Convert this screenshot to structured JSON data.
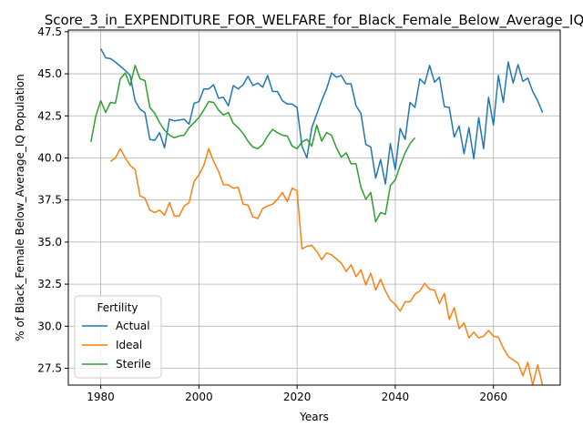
{
  "chart_data": {
    "type": "line",
    "title": "Score_3_in_EXPENDITURE_FOR_WELFARE_for_Black_Female_Below_Average_IQ",
    "xlabel": "Years",
    "ylabel": "% of Black_Female Below_Average_IQ Population",
    "xlim": [
      1973.4,
      2073.6
    ],
    "ylim": [
      26.5,
      47.6
    ],
    "xticks": [
      1980,
      2000,
      2020,
      2040,
      2060
    ],
    "xtick_labels": [
      "1980",
      "2000",
      "2020",
      "2040",
      "2060"
    ],
    "yticks": [
      27.5,
      30.0,
      32.5,
      35.0,
      37.5,
      40.0,
      42.5,
      45.0,
      47.5
    ],
    "ytick_labels": [
      "27.5",
      "30.0",
      "32.5",
      "35.0",
      "37.5",
      "40.0",
      "42.5",
      "45.0",
      "47.5"
    ],
    "grid": true,
    "legend": {
      "title": "Fertility",
      "position": "lower left"
    },
    "series": [
      {
        "name": "Actual",
        "color": "#1f77b4",
        "x": [
          1980,
          1981,
          1982,
          1983,
          1984,
          1985,
          1986,
          1987,
          1988,
          1989,
          1990,
          1991,
          1992,
          1993,
          1994,
          1995,
          1996,
          1997,
          1998,
          1999,
          2000,
          2001,
          2002,
          2003,
          2004,
          2005,
          2006,
          2007,
          2008,
          2009,
          2010,
          2011,
          2012,
          2013,
          2014,
          2015,
          2016,
          2017,
          2018,
          2019,
          2020,
          2021,
          2022,
          2023,
          2024,
          2025,
          2026,
          2027,
          2028,
          2029,
          2030,
          2031,
          2032,
          2033,
          2034,
          2035,
          2036,
          2037,
          2038,
          2039,
          2040,
          2041,
          2042,
          2043,
          2044,
          2045,
          2046,
          2047,
          2048,
          2049,
          2050,
          2051,
          2052,
          2053,
          2054,
          2055,
          2056,
          2057,
          2058,
          2059,
          2060,
          2061,
          2062,
          2063,
          2064,
          2065,
          2066,
          2067,
          2068,
          2069,
          2070
        ],
        "values": [
          46.5,
          45.95,
          45.9,
          45.7,
          45.45,
          45.2,
          44.9,
          43.4,
          42.9,
          42.7,
          41.1,
          41.05,
          41.5,
          40.6,
          42.3,
          42.2,
          42.25,
          42.3,
          42.0,
          43.25,
          43.35,
          44.1,
          44.1,
          44.35,
          43.55,
          43.6,
          43.1,
          44.3,
          44.1,
          44.35,
          44.85,
          44.3,
          44.45,
          44.2,
          44.9,
          43.95,
          43.95,
          43.4,
          43.2,
          43.2,
          43.0,
          40.7,
          40.0,
          41.8,
          42.6,
          43.4,
          44.1,
          45.05,
          44.8,
          44.9,
          44.4,
          44.4,
          43.1,
          42.65,
          40.8,
          40.65,
          38.8,
          39.9,
          38.45,
          40.85,
          39.3,
          41.75,
          41.1,
          43.3,
          43.0,
          44.7,
          44.4,
          45.5,
          44.5,
          44.8,
          43.05,
          43.0,
          41.25,
          41.9,
          40.25,
          41.8,
          39.95,
          42.4,
          40.55,
          43.6,
          41.95,
          44.9,
          43.3,
          45.7,
          44.45,
          45.55,
          44.55,
          44.75,
          43.95,
          43.4,
          42.7
        ]
      },
      {
        "name": "Ideal",
        "color": "#ff7f0e",
        "x": [
          1982,
          1983,
          1984,
          1985,
          1986,
          1987,
          1988,
          1989,
          1990,
          1991,
          1992,
          1993,
          1994,
          1995,
          1996,
          1997,
          1998,
          1999,
          2000,
          2001,
          2002,
          2003,
          2004,
          2005,
          2006,
          2007,
          2008,
          2009,
          2010,
          2011,
          2012,
          2013,
          2014,
          2015,
          2016,
          2017,
          2018,
          2019,
          2020,
          2021,
          2022,
          2023,
          2024,
          2025,
          2026,
          2027,
          2028,
          2029,
          2030,
          2031,
          2032,
          2033,
          2034,
          2035,
          2036,
          2037,
          2038,
          2039,
          2040,
          2041,
          2042,
          2043,
          2044,
          2045,
          2046,
          2047,
          2048,
          2049,
          2050,
          2051,
          2052,
          2053,
          2054,
          2055,
          2056,
          2057,
          2058,
          2059,
          2060,
          2061,
          2062,
          2063,
          2064,
          2065,
          2066,
          2067,
          2068,
          2069,
          2070
        ],
        "values": [
          39.8,
          40.0,
          40.55,
          40.0,
          39.55,
          39.3,
          37.75,
          37.6,
          36.9,
          36.75,
          36.9,
          36.6,
          37.35,
          36.55,
          36.55,
          37.15,
          37.35,
          38.6,
          39.0,
          39.55,
          40.55,
          39.8,
          39.2,
          38.4,
          38.4,
          38.2,
          38.25,
          37.25,
          37.2,
          36.5,
          36.4,
          37.0,
          37.15,
          37.25,
          37.55,
          37.95,
          37.4,
          38.2,
          38.05,
          34.6,
          34.75,
          34.8,
          34.45,
          33.95,
          34.35,
          34.25,
          34.0,
          33.75,
          33.25,
          33.65,
          32.95,
          33.35,
          32.45,
          33.15,
          32.15,
          32.8,
          32.1,
          31.55,
          31.3,
          30.9,
          31.45,
          31.45,
          31.9,
          32.1,
          32.55,
          32.2,
          32.15,
          31.35,
          31.95,
          30.4,
          31.1,
          29.85,
          30.2,
          29.3,
          29.65,
          29.3,
          29.4,
          29.75,
          29.4,
          29.35,
          28.7,
          28.2,
          28.0,
          27.8,
          27.05,
          27.85,
          26.5,
          27.7,
          26.5
        ]
      },
      {
        "name": "Sterile",
        "color": "#2ca02c",
        "x": [
          1978,
          1979,
          1980,
          1981,
          1982,
          1983,
          1984,
          1985,
          1986,
          1987,
          1988,
          1989,
          1990,
          1991,
          1992,
          1993,
          1994,
          1995,
          1996,
          1997,
          1998,
          1999,
          2000,
          2001,
          2002,
          2003,
          2004,
          2005,
          2006,
          2007,
          2008,
          2009,
          2010,
          2011,
          2012,
          2013,
          2014,
          2015,
          2016,
          2017,
          2018,
          2019,
          2020,
          2021,
          2022,
          2023,
          2024,
          2025,
          2026,
          2027,
          2028,
          2029,
          2030,
          2031,
          2032,
          2033,
          2034,
          2035,
          2036,
          2037,
          2038,
          2039,
          2040,
          2041,
          2042,
          2043,
          2044
        ],
        "values": [
          40.95,
          42.5,
          43.4,
          42.7,
          43.3,
          43.25,
          44.7,
          45.05,
          44.3,
          45.5,
          44.7,
          44.6,
          43.0,
          42.65,
          42.1,
          41.65,
          41.35,
          41.2,
          41.3,
          41.35,
          41.8,
          42.1,
          42.4,
          42.85,
          43.35,
          43.3,
          42.85,
          42.55,
          42.7,
          42.05,
          41.8,
          41.45,
          41.0,
          40.65,
          40.55,
          40.8,
          41.3,
          41.7,
          41.5,
          41.35,
          41.3,
          40.7,
          40.55,
          40.95,
          41.1,
          40.7,
          41.95,
          41.0,
          41.5,
          41.35,
          40.6,
          40.05,
          40.3,
          39.65,
          39.65,
          38.25,
          37.55,
          37.95,
          36.2,
          36.75,
          36.65,
          38.35,
          38.7,
          39.55,
          40.3,
          40.85,
          41.2
        ]
      }
    ]
  }
}
